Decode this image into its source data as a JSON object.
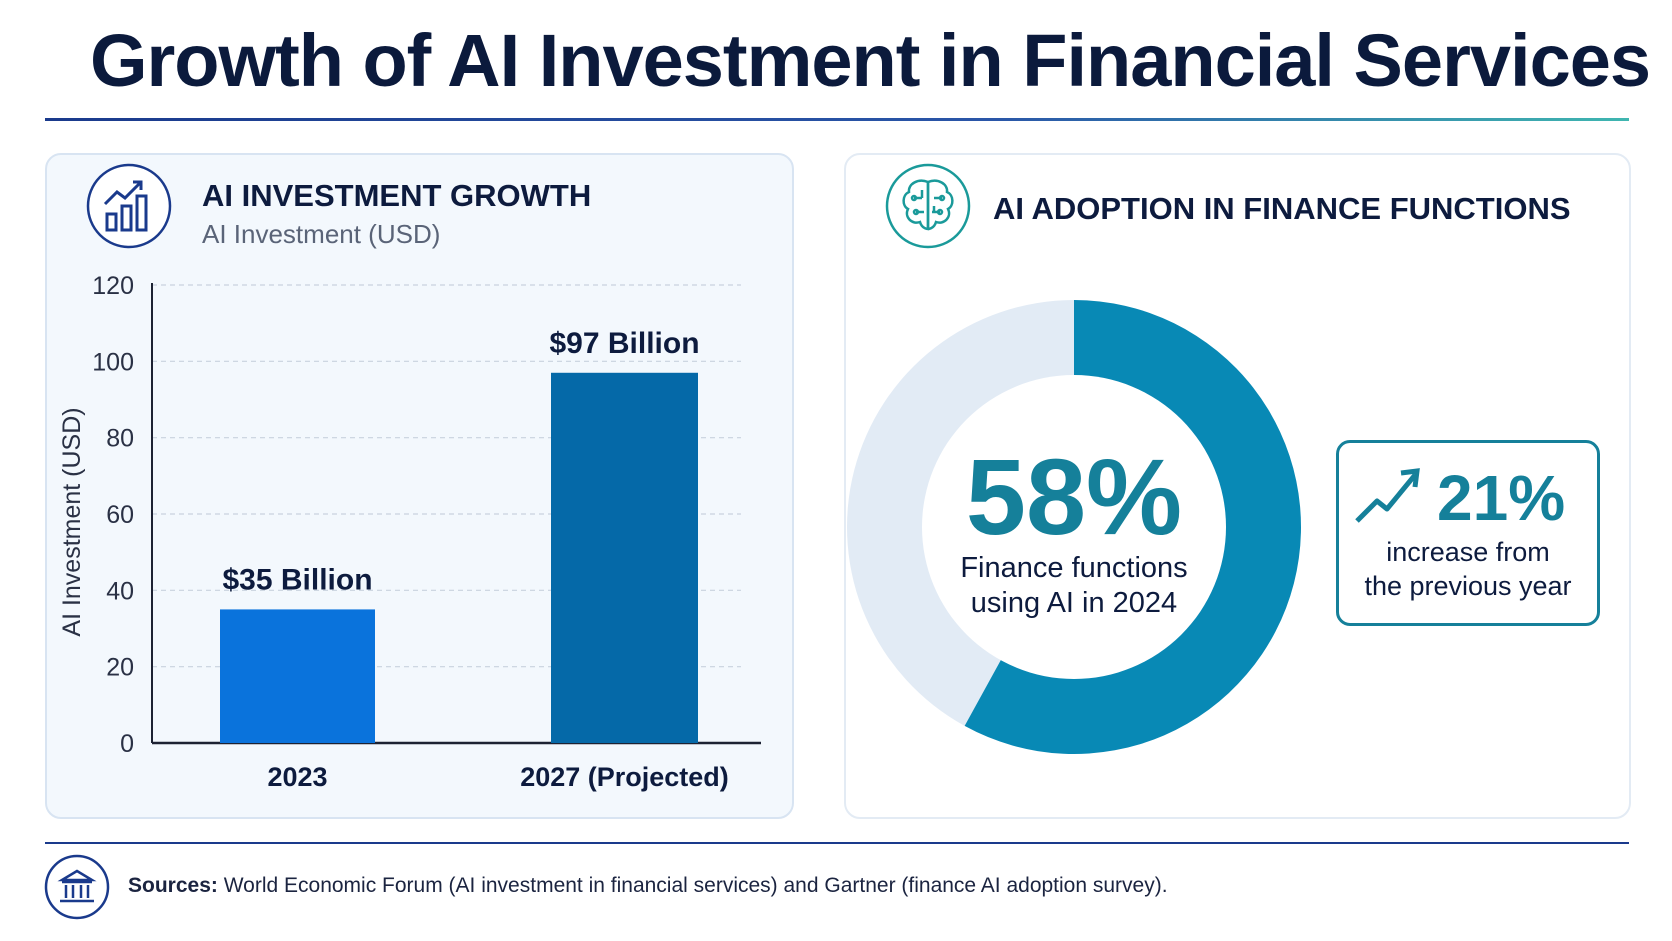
{
  "title": "Growth of AI Investment in Financial Services",
  "left_panel": {
    "title": "AI INVESTMENT GROWTH",
    "subtitle": "AI Investment (USD)",
    "icon": "bar-chart-growth-icon"
  },
  "right_panel": {
    "title": "AI ADOPTION IN FINANCE FUNCTIONS",
    "icon": "brain-circuit-icon",
    "stat": {
      "value": "21%",
      "line1": "increase from",
      "line2": "the previous year",
      "icon": "trend-up-arrow-icon"
    }
  },
  "chart_data": [
    {
      "type": "bar",
      "categories": [
        "2023",
        "2027 (Projected)"
      ],
      "values": [
        35,
        97
      ],
      "data_labels": [
        "$35 Billion",
        "$97 Billion"
      ],
      "ylabel": "AI Investment (USD)",
      "ylim": [
        0,
        120
      ],
      "yticks": [
        0,
        20,
        40,
        60,
        80,
        100,
        120
      ],
      "grid": true,
      "colors": [
        "#0a73dc",
        "#0569a8"
      ]
    },
    {
      "type": "pie",
      "style": "donut",
      "values": [
        58,
        42
      ],
      "center_value": "58%",
      "center_line1": "Finance functions",
      "center_line2": "using AI in 2024",
      "colors": [
        "#0889b5",
        "#e2ebf5"
      ]
    }
  ],
  "footer": {
    "sources_label": "Sources:",
    "sources_text": " World Economic Forum (AI investment in financial services) and Gartner (finance AI adoption survey).",
    "icon": "bank-building-icon"
  },
  "colors": {
    "navy": "#0d1b3e",
    "teal": "#15809a",
    "accent_blue": "#1a3a8c"
  }
}
